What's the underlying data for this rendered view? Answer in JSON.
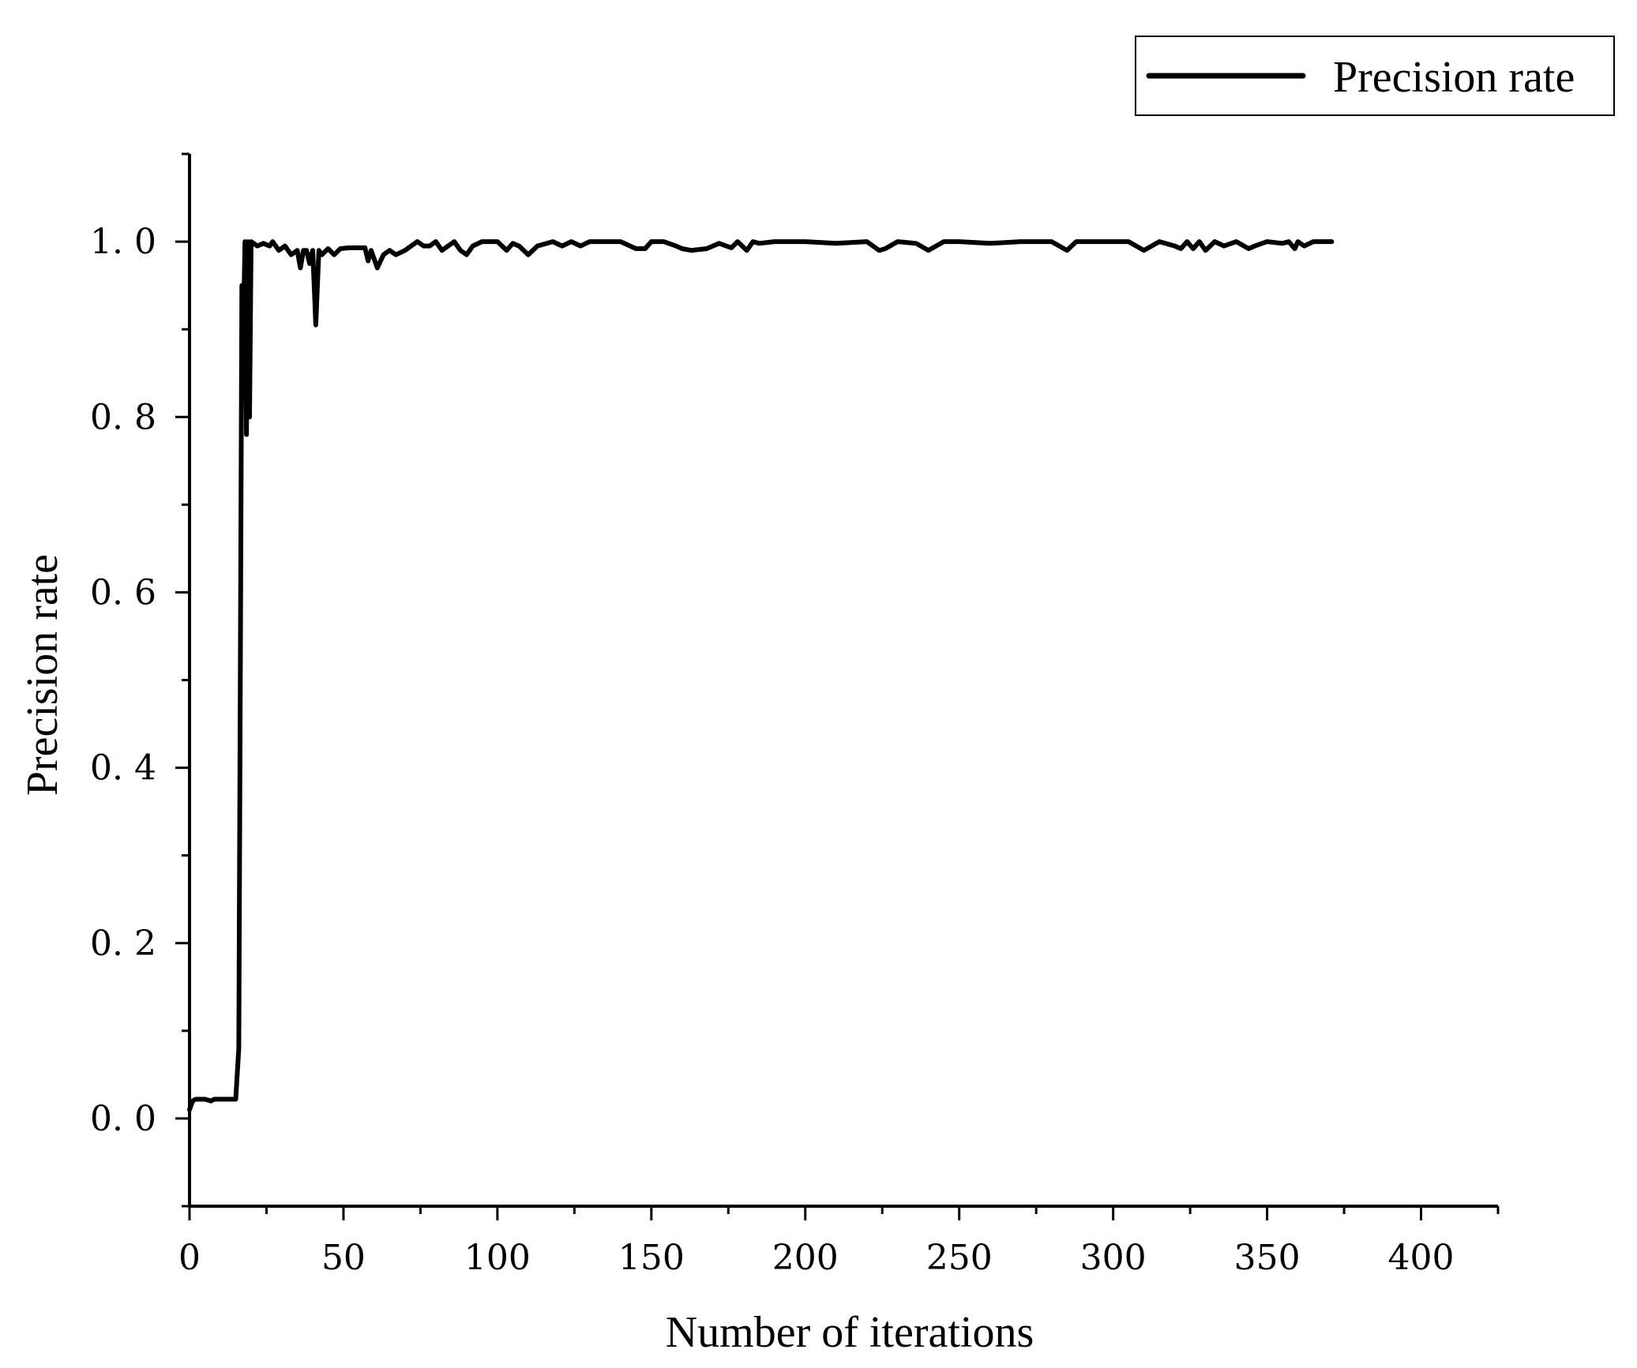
{
  "chart_data": {
    "type": "line",
    "xlabel": "Number of iterations",
    "ylabel": "Precision rate",
    "xlim": [
      0,
      425
    ],
    "ylim": [
      -0.1,
      1.1
    ],
    "x_ticks": [
      0,
      50,
      100,
      150,
      200,
      250,
      300,
      350,
      400
    ],
    "x_tick_labels": [
      "0",
      "50",
      "100",
      "150",
      "200",
      "250",
      "300",
      "350",
      "400"
    ],
    "y_ticks": [
      0.0,
      0.2,
      0.4,
      0.6,
      0.8,
      1.0
    ],
    "y_tick_labels": [
      "0. 0",
      "0. 2",
      "0. 4",
      "0. 6",
      "0. 8",
      "1. 0"
    ],
    "grid": false,
    "legend_position": "top-right",
    "line_color": "#000000",
    "series": [
      {
        "name": "Precision rate",
        "x": [
          0,
          1,
          2,
          3,
          5,
          7,
          8,
          9,
          10,
          12,
          14,
          15,
          16,
          16.5,
          17,
          17.5,
          18,
          18.5,
          19,
          19.5,
          20,
          22,
          24,
          26,
          27,
          29,
          31,
          33,
          35,
          36,
          37,
          38,
          39,
          40,
          41,
          42,
          43,
          45,
          47,
          49,
          52,
          55,
          57,
          58,
          59,
          60,
          61,
          63,
          65,
          67,
          70,
          72,
          74,
          76,
          78,
          80,
          82,
          84,
          86,
          88,
          90,
          92,
          95,
          100,
          103,
          105,
          107,
          110,
          113,
          118,
          121,
          124,
          127,
          130,
          134,
          140,
          145,
          148,
          150,
          154,
          158,
          160,
          163,
          168,
          172,
          176,
          178,
          181,
          183,
          185,
          190,
          200,
          210,
          220,
          224,
          226,
          230,
          236,
          240,
          245,
          250,
          260,
          270,
          280,
          285,
          288,
          290,
          300,
          305,
          310,
          315,
          320,
          322,
          324,
          326,
          328,
          330,
          333,
          336,
          340,
          344,
          346,
          350,
          355,
          357,
          359,
          360,
          362,
          365,
          368,
          371
        ],
        "values": [
          0.01,
          0.02,
          0.022,
          0.022,
          0.022,
          0.02,
          0.022,
          0.022,
          0.022,
          0.022,
          0.022,
          0.022,
          0.08,
          0.5,
          0.95,
          0.9,
          1.0,
          0.78,
          1.0,
          0.8,
          1.0,
          0.995,
          0.998,
          0.995,
          1.0,
          0.99,
          0.995,
          0.985,
          0.99,
          0.97,
          0.99,
          0.99,
          0.975,
          0.99,
          0.905,
          0.99,
          0.985,
          0.992,
          0.985,
          0.992,
          0.993,
          0.993,
          0.993,
          0.978,
          0.99,
          0.98,
          0.97,
          0.985,
          0.99,
          0.985,
          0.99,
          0.995,
          1.0,
          0.995,
          0.995,
          1.0,
          0.99,
          0.995,
          1.0,
          0.99,
          0.985,
          0.995,
          1.0,
          1.0,
          0.99,
          0.998,
          0.995,
          0.985,
          0.995,
          1.0,
          0.995,
          1.0,
          0.995,
          1.0,
          1.0,
          1.0,
          0.992,
          0.992,
          1.0,
          1.0,
          0.995,
          0.992,
          0.99,
          0.992,
          0.998,
          0.993,
          1.0,
          0.99,
          1.0,
          0.998,
          1.0,
          1.0,
          0.998,
          1.0,
          0.99,
          0.992,
          1.0,
          0.998,
          0.99,
          1.0,
          1.0,
          0.998,
          1.0,
          1.0,
          0.99,
          1.0,
          1.0,
          1.0,
          1.0,
          0.99,
          1.0,
          0.995,
          0.992,
          1.0,
          0.992,
          1.0,
          0.99,
          1.0,
          0.995,
          1.0,
          0.992,
          0.995,
          1.0,
          0.998,
          1.0,
          0.992,
          1.0,
          0.995,
          1.0,
          1.0,
          1.0
        ]
      }
    ]
  }
}
